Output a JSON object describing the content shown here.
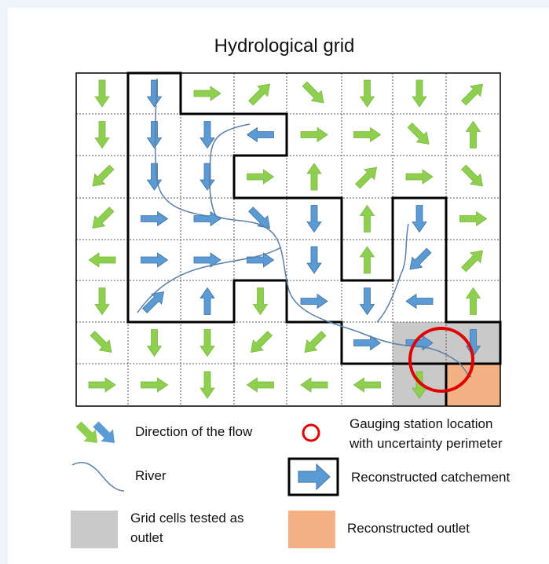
{
  "title": "Hydrological grid",
  "legend": {
    "flow": "Direction of the flow",
    "gauging": [
      "Gauging station location",
      "with uncertainty perimeter"
    ],
    "river": "River",
    "catchment": "Reconstructed catchement",
    "tested": [
      "Grid cells tested as",
      "outlet"
    ],
    "outlet": "Reconstructed outlet"
  }
}
